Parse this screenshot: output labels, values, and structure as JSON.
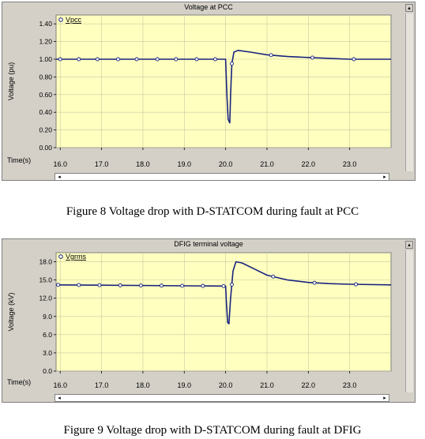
{
  "chart_data": [
    {
      "type": "line",
      "title": "Voltage at PCC",
      "ylabel": "Voltage (pu)",
      "xlabel": "Time(s)",
      "xlim": [
        15.9,
        24.0
      ],
      "ylim": [
        0,
        1.5
      ],
      "yticks": [
        0.0,
        0.2,
        0.4,
        0.6,
        0.8,
        1.0,
        1.2,
        1.4
      ],
      "ytick_labels": [
        "0.00",
        "0.20",
        "0.40",
        "0.60",
        "0.80",
        "1.00",
        "1.20",
        "1.40"
      ],
      "xticks": [
        16,
        17,
        18,
        19,
        20,
        21,
        22,
        23
      ],
      "xtick_labels": [
        "16.0",
        "17.0",
        "18.0",
        "19.0",
        "20.0",
        "21.0",
        "22.0",
        "23.0"
      ],
      "grid": true,
      "legend": "top-left",
      "series": [
        {
          "name": "Vpcc",
          "color": "#1a237e",
          "x": [
            15.9,
            19.9,
            20.0,
            20.03,
            20.06,
            20.1,
            20.12,
            20.15,
            20.2,
            20.3,
            20.6,
            21.0,
            21.5,
            22.0,
            22.5,
            23.0,
            24.0
          ],
          "y": [
            1.0,
            1.0,
            1.0,
            0.6,
            0.32,
            0.28,
            0.6,
            0.95,
            1.08,
            1.1,
            1.08,
            1.05,
            1.03,
            1.02,
            1.01,
            1.0,
            1.0
          ],
          "marker_x": [
            16.0,
            16.45,
            16.9,
            17.4,
            17.85,
            18.35,
            18.8,
            19.3,
            19.75,
            20.15,
            21.1,
            22.1,
            23.1
          ]
        }
      ]
    },
    {
      "type": "line",
      "title": "DFIG terminal voltage",
      "ylabel": "Voltage (kV)",
      "xlabel": "Time(s)",
      "xlim": [
        15.9,
        24.0
      ],
      "ylim": [
        0,
        19.5
      ],
      "yticks": [
        0.0,
        3.0,
        6.0,
        9.0,
        12.0,
        15.0,
        18.0
      ],
      "ytick_labels": [
        "0.0",
        "3.0",
        "6.0",
        "9.0",
        "12.0",
        "15.0",
        "18.0"
      ],
      "xticks": [
        16,
        17,
        18,
        19,
        20,
        21,
        22,
        23
      ],
      "xtick_labels": [
        "16.0",
        "17.0",
        "18.0",
        "19.0",
        "20.0",
        "21.0",
        "22.0",
        "23.0"
      ],
      "grid": true,
      "legend": "top-left",
      "series": [
        {
          "name": "Vgrms",
          "color": "#1a237e",
          "x": [
            15.9,
            19.9,
            20.0,
            20.02,
            20.05,
            20.08,
            20.12,
            20.18,
            20.25,
            20.4,
            20.7,
            21.0,
            21.5,
            22.0,
            22.5,
            23.0,
            24.0
          ],
          "y": [
            14.2,
            14.0,
            14.0,
            11.0,
            8.0,
            7.8,
            12.0,
            16.5,
            18.0,
            17.8,
            16.8,
            15.8,
            15.0,
            14.6,
            14.4,
            14.3,
            14.2
          ],
          "marker_x": [
            15.95,
            16.45,
            16.95,
            17.45,
            17.95,
            18.45,
            18.95,
            19.45,
            19.95,
            20.15,
            21.15,
            22.15,
            23.15
          ]
        }
      ]
    }
  ],
  "captions": {
    "fig8": "Figure 8 Voltage drop with D-STATCOM during fault at PCC",
    "fig9": "Figure 9 Voltage drop with D-STATCOM during fault at DFIG"
  },
  "controls": {
    "scroll_up_glyph": "▴",
    "scroll_left_glyph": "◂",
    "scroll_right_glyph": "▸"
  },
  "colors": {
    "plot_bg": "#ffffc0",
    "panel_bg": "#d4d0c8",
    "line": "#1a237e",
    "grid": "#c8c8a0"
  }
}
